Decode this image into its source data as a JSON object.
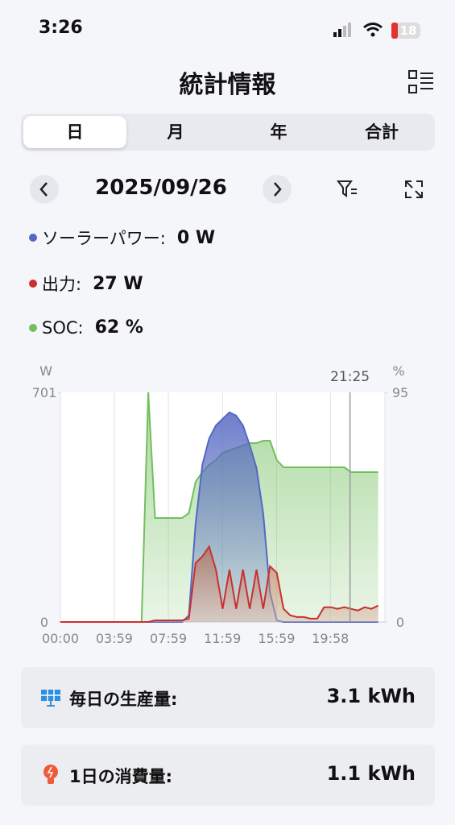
{
  "status_bar": {
    "time": "3:26",
    "battery": "18"
  },
  "header": {
    "title": "統計情報"
  },
  "tabs": [
    "日",
    "月",
    "年",
    "合計"
  ],
  "date": "2025/09/26",
  "chart_data": {
    "type": "line",
    "x": [
      "00:00",
      "00:30",
      "01:00",
      "01:30",
      "02:00",
      "02:30",
      "03:00",
      "03:30",
      "04:00",
      "04:30",
      "05:00",
      "05:30",
      "06:00",
      "06:30",
      "07:00",
      "07:30",
      "08:00",
      "08:30",
      "09:00",
      "09:30",
      "10:00",
      "10:30",
      "11:00",
      "11:30",
      "12:00",
      "12:30",
      "13:00",
      "13:30",
      "14:00",
      "14:30",
      "15:00",
      "15:30",
      "16:00",
      "16:30",
      "17:00",
      "17:30",
      "18:00",
      "18:30",
      "19:00",
      "19:30",
      "20:00",
      "20:30",
      "21:00",
      "21:30",
      "22:00",
      "22:30",
      "23:00",
      "23:30"
    ],
    "xlim": [
      "00:00",
      "24:00"
    ],
    "xticks": [
      "00:00",
      "03:59",
      "07:59",
      "11:59",
      "15:59",
      "19:58"
    ],
    "ylabel": "W",
    "y2label": "%",
    "ylim": [
      0,
      701
    ],
    "yticks": [
      0,
      701
    ],
    "y2lim": [
      0,
      95
    ],
    "y2ticks": [
      0,
      95
    ],
    "cursor": "21:25",
    "grid": true,
    "series": [
      {
        "name": "ソーラーパワー:",
        "current": "0 W",
        "color": "#5468c2",
        "values": [
          0,
          0,
          0,
          0,
          0,
          0,
          0,
          0,
          0,
          0,
          0,
          0,
          0,
          0,
          0,
          0,
          0,
          0,
          0,
          20,
          300,
          480,
          560,
          600,
          620,
          640,
          630,
          600,
          540,
          470,
          330,
          90,
          5,
          0,
          0,
          0,
          0,
          0,
          0,
          0,
          0,
          0,
          0,
          0,
          0,
          0,
          0,
          0
        ]
      },
      {
        "name": "出力:",
        "current": "27 W",
        "color": "#c9302c",
        "values": [
          0,
          0,
          0,
          0,
          0,
          0,
          0,
          0,
          0,
          0,
          0,
          0,
          0,
          0,
          5,
          5,
          5,
          5,
          5,
          10,
          180,
          200,
          230,
          160,
          40,
          160,
          40,
          160,
          40,
          160,
          40,
          170,
          150,
          40,
          20,
          15,
          15,
          10,
          10,
          45,
          45,
          40,
          45,
          40,
          35,
          45,
          40,
          50
        ]
      },
      {
        "name": "SOC:",
        "current": "62 %",
        "color": "#72bf5e",
        "axis": "y2",
        "values": [
          0,
          0,
          0,
          0,
          0,
          0,
          0,
          0,
          0,
          0,
          0,
          0,
          0,
          95,
          43,
          43,
          43,
          43,
          43,
          45,
          58,
          62,
          65,
          67,
          70,
          71,
          72,
          73,
          74,
          74,
          75,
          75,
          67,
          64,
          64,
          64,
          64,
          64,
          64,
          64,
          64,
          64,
          64,
          62,
          62,
          62,
          62,
          62
        ]
      }
    ]
  },
  "summary": [
    {
      "label": "毎日の生産量:",
      "value": "3.1 kWh"
    },
    {
      "label": "1日の消費量:",
      "value": "1.1 kWh"
    }
  ]
}
